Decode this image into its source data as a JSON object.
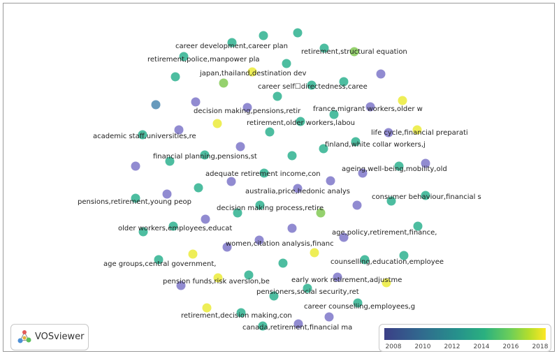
{
  "app": "VOSviewer",
  "legend": {
    "ticks": [
      "2008",
      "2010",
      "2012",
      "2014",
      "2016",
      "2018"
    ]
  },
  "colors": {
    "c2008": "#5b5fa8",
    "c2010": "#7b7cc2",
    "c2012": "#3aab96",
    "c2014": "#33bd8c",
    "c2016": "#9fd55a",
    "c2018": "#e8e845",
    "teal": "#43b99b",
    "purple": "#8b85cf",
    "green": "#8fcf66",
    "yellow": "#eded4e",
    "blue": "#5f95b8"
  },
  "labels": [
    "career development,career plan",
    "retirement,structural equation",
    "retirement,police,manpower pla",
    "japan,thailand,destination dev",
    "career self☐directedness,caree",
    "decision making,pensions,retir",
    "france,migrant workers,older w",
    "retirement,older workers,labou",
    "academic staff,universities,re",
    "life cycle,financial preparati",
    "finland,white collar workers,j",
    "financial planning,pensions,st",
    "ageing,well-being,mobility,old",
    "adequate retirement income,con",
    "australia,price,hedonic analys",
    "consumer behaviour,financial s",
    "pensions,retirement,young peop",
    "decision making process,retire",
    "older workers,employees,educat",
    "age,policy,retirement,finance,",
    "women,citation analysis,financ",
    "counselling,education,employee",
    "age groups,central government,",
    "pension funds,risk aversion,be",
    "early work retirement,adjustme",
    "pensioners,social security,ret",
    "career counselling,employees,g",
    "retirement,decision making,con",
    "canada,retirement,financial ma"
  ]
}
